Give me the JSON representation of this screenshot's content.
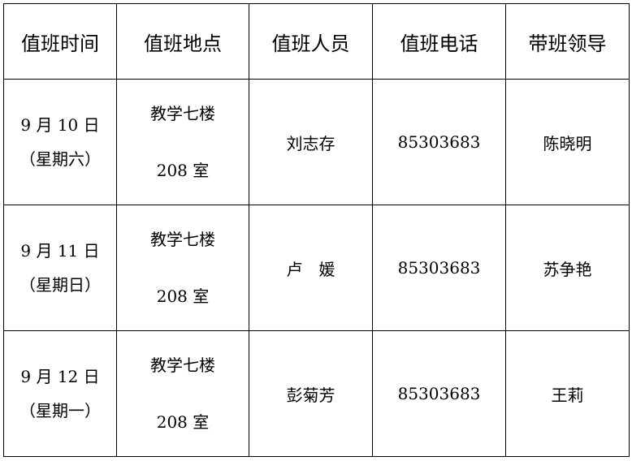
{
  "headers": [
    "值班时间",
    "值班地点",
    "值班人员",
    "值班电话",
    "带班领导"
  ],
  "rows": [
    {
      "date": "9 月 10 日",
      "weekday": "（星期六）",
      "location_line1": "教学七楼",
      "location_line2": "208 室",
      "staff": "刘志存",
      "phone": "85303683",
      "leader": "陈晓明"
    },
    {
      "date": "9 月 11 日",
      "weekday": "（星期日）",
      "location_line1": "教学七楼",
      "location_line2": "208 室",
      "staff": "卢　媛",
      "phone": "85303683",
      "leader": "苏争艳"
    },
    {
      "date": "9 月 12 日",
      "weekday": "（星期一）",
      "location_line1": "教学七楼",
      "location_line2": "208 室",
      "staff": "彭菊芳",
      "phone": "85303683",
      "leader": "王莉"
    }
  ]
}
